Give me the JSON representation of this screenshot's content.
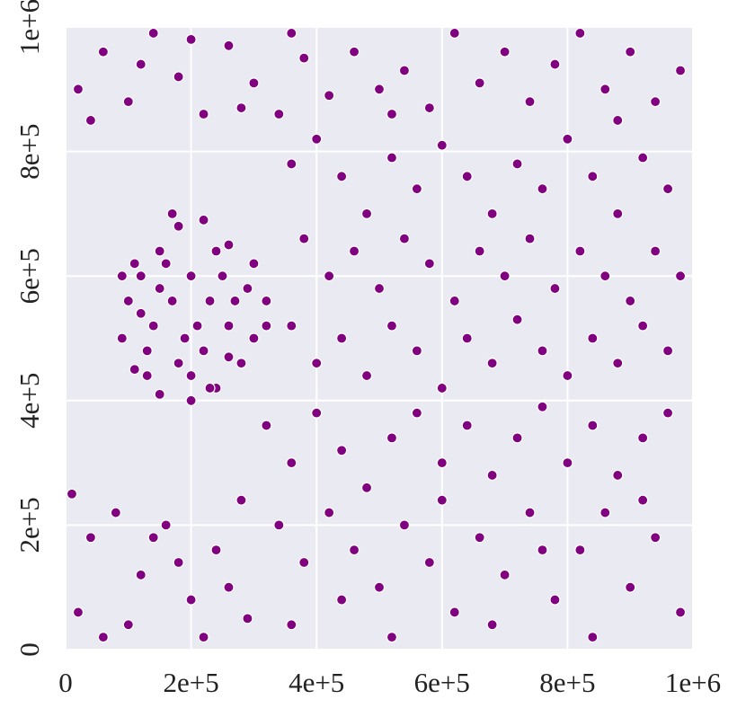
{
  "chart_data": {
    "type": "scatter",
    "color": "#800080",
    "grid": true,
    "xlim": [
      0,
      1000000
    ],
    "ylim": [
      0,
      1000000
    ],
    "xticks": [
      0,
      {
        "value": 200000,
        "label": "2e+5"
      },
      {
        "value": 400000,
        "label": "4e+5"
      },
      {
        "value": 600000,
        "label": "6e+5"
      },
      {
        "value": 800000,
        "label": "8e+5"
      },
      {
        "value": 1000000,
        "label": "1e+6"
      }
    ],
    "yticks": [
      0,
      {
        "value": 200000,
        "label": "2e+5"
      },
      {
        "value": 400000,
        "label": "4e+5"
      },
      {
        "value": 600000,
        "label": "6e+5"
      },
      {
        "value": 800000,
        "label": "8e+5"
      },
      {
        "value": 1000000,
        "label": "1e+6"
      }
    ],
    "x": [
      100000,
      120000,
      150000,
      180000,
      220000,
      260000,
      300000,
      320000,
      300000,
      280000,
      240000,
      200000,
      150000,
      110000,
      90000,
      140000,
      170000,
      200000,
      230000,
      260000,
      220000,
      180000,
      130000,
      250000,
      160000,
      120000,
      210000,
      270000,
      190000,
      150000,
      240000,
      290000,
      110000,
      170000,
      200000,
      260000,
      130000,
      230000,
      90000,
      320000,
      20000,
      60000,
      100000,
      140000,
      180000,
      220000,
      260000,
      300000,
      340000,
      380000,
      420000,
      40000,
      120000,
      200000,
      280000,
      360000,
      460000,
      500000,
      540000,
      580000,
      620000,
      660000,
      700000,
      740000,
      780000,
      820000,
      860000,
      900000,
      940000,
      980000,
      520000,
      880000,
      360000,
      400000,
      440000,
      480000,
      520000,
      560000,
      600000,
      640000,
      680000,
      720000,
      760000,
      800000,
      840000,
      880000,
      920000,
      960000,
      380000,
      420000,
      460000,
      500000,
      540000,
      580000,
      620000,
      660000,
      700000,
      740000,
      780000,
      820000,
      860000,
      900000,
      940000,
      980000,
      360000,
      400000,
      440000,
      480000,
      520000,
      560000,
      600000,
      640000,
      680000,
      720000,
      760000,
      800000,
      840000,
      880000,
      920000,
      960000,
      320000,
      360000,
      400000,
      440000,
      480000,
      520000,
      560000,
      600000,
      640000,
      680000,
      720000,
      760000,
      800000,
      840000,
      880000,
      920000,
      960000,
      340000,
      380000,
      420000,
      460000,
      500000,
      540000,
      580000,
      620000,
      660000,
      700000,
      740000,
      780000,
      820000,
      860000,
      900000,
      940000,
      980000,
      360000,
      440000,
      520000,
      600000,
      680000,
      760000,
      840000,
      920000,
      10000,
      40000,
      80000,
      120000,
      160000,
      200000,
      240000,
      280000,
      20000,
      60000,
      100000,
      140000,
      180000,
      220000,
      260000,
      290000
    ],
    "values": [
      560000,
      600000,
      640000,
      680000,
      690000,
      650000,
      620000,
      560000,
      500000,
      460000,
      420000,
      400000,
      410000,
      450000,
      500000,
      520000,
      560000,
      600000,
      560000,
      520000,
      480000,
      460000,
      480000,
      600000,
      620000,
      540000,
      520000,
      560000,
      500000,
      580000,
      640000,
      580000,
      620000,
      700000,
      440000,
      470000,
      440000,
      420000,
      600000,
      520000,
      900000,
      960000,
      880000,
      990000,
      920000,
      860000,
      970000,
      910000,
      860000,
      950000,
      890000,
      850000,
      940000,
      980000,
      870000,
      990000,
      960000,
      900000,
      930000,
      870000,
      990000,
      910000,
      960000,
      880000,
      940000,
      990000,
      900000,
      960000,
      880000,
      930000,
      860000,
      850000,
      780000,
      820000,
      760000,
      700000,
      790000,
      740000,
      810000,
      760000,
      700000,
      780000,
      740000,
      820000,
      760000,
      700000,
      790000,
      740000,
      660000,
      600000,
      640000,
      580000,
      660000,
      620000,
      560000,
      640000,
      600000,
      660000,
      580000,
      640000,
      600000,
      560000,
      640000,
      600000,
      520000,
      460000,
      500000,
      440000,
      520000,
      480000,
      420000,
      500000,
      460000,
      530000,
      480000,
      440000,
      500000,
      460000,
      520000,
      480000,
      360000,
      300000,
      380000,
      320000,
      260000,
      340000,
      380000,
      300000,
      360000,
      280000,
      340000,
      390000,
      300000,
      360000,
      280000,
      340000,
      380000,
      200000,
      140000,
      220000,
      160000,
      100000,
      200000,
      140000,
      60000,
      180000,
      120000,
      220000,
      80000,
      160000,
      220000,
      100000,
      180000,
      60000,
      40000,
      80000,
      20000,
      240000,
      40000,
      160000,
      20000,
      240000,
      250000,
      180000,
      220000,
      120000,
      200000,
      80000,
      160000,
      240000,
      60000,
      20000,
      40000,
      180000,
      140000,
      20000,
      100000,
      50000
    ]
  }
}
